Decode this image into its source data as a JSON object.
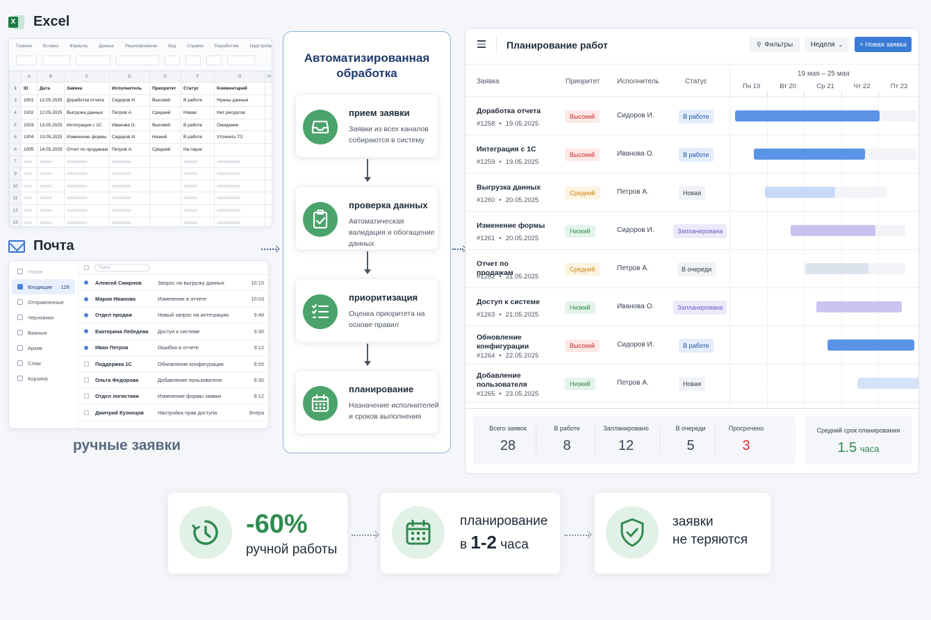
{
  "excel": {
    "title": "Excel",
    "ribbon_tabs": [
      "Главная",
      "Вставка",
      "Формулы",
      "Данные",
      "Рецензирование",
      "Вид",
      "Справка",
      "Разработчик",
      "Надстройки"
    ],
    "columns": [
      "A",
      "B",
      "C",
      "D",
      "E",
      "F",
      "G",
      "H"
    ],
    "headers": [
      "ID",
      "Дата",
      "Заявка",
      "Исполнитель",
      "Приоритет",
      "Статус",
      "Комментарий"
    ],
    "rows": [
      [
        "1001",
        "12.05.2025",
        "Доработка отчета",
        "Сидоров И.",
        "Высокий",
        "В работе",
        "Нужны данные"
      ],
      [
        "1002",
        "12.05.2025",
        "Выгрузка данных",
        "Петров А.",
        "Средний",
        "Новая",
        "Нет ресурсов"
      ],
      [
        "1003",
        "13.05.2025",
        "Интеграция с 1С",
        "Иванова О.",
        "Высокий",
        "В работе",
        "Ожидание"
      ],
      [
        "1004",
        "13.05.2025",
        "Изменение формы",
        "Сидоров И.",
        "Низкий",
        "В работе",
        "Уточнить ТЗ"
      ],
      [
        "1005",
        "14.05.2025",
        "Отчет по продажам",
        "Петров А.",
        "Средний",
        "На паузе",
        ""
      ]
    ],
    "row_numbers": [
      "1",
      "3",
      "4",
      "5",
      "6",
      "8",
      "7",
      "9",
      "10",
      "11",
      "13",
      "13"
    ]
  },
  "mail": {
    "title": "Почта",
    "compose": "Новое",
    "search_placeholder": "Поиск",
    "folders": [
      {
        "label": "Входящие",
        "count": "128",
        "icon": "inbox-icon"
      },
      {
        "label": "Отправленные",
        "count": "",
        "icon": "send-icon"
      },
      {
        "label": "Черновики",
        "count": "",
        "icon": "draft-icon"
      },
      {
        "label": "Важные",
        "count": "",
        "icon": "star-icon"
      },
      {
        "label": "Архив",
        "count": "",
        "icon": "archive-icon"
      },
      {
        "label": "Спам",
        "count": "",
        "icon": "spam-icon"
      },
      {
        "label": "Корзина",
        "count": "",
        "icon": "trash-icon"
      }
    ],
    "messages": [
      {
        "from": "Алексей Смирнов",
        "subject": "Запрос на выгрузку данных",
        "time": "10:15",
        "unread": true
      },
      {
        "from": "Мария Иванова",
        "subject": "Изменение в отчете",
        "time": "10:03",
        "unread": true
      },
      {
        "from": "Отдел продаж",
        "subject": "Новый запрос на интеграцию",
        "time": "9:48",
        "unread": true
      },
      {
        "from": "Екатерина Лебедева",
        "subject": "Доступ к системе",
        "time": "9:30",
        "unread": true
      },
      {
        "from": "Иван Петров",
        "subject": "Ошибка в отчете",
        "time": "9:12",
        "unread": true
      },
      {
        "from": "Поддержка 1С",
        "subject": "Обновление конфигурации",
        "time": "8:55",
        "unread": false
      },
      {
        "from": "Ольга Федорова",
        "subject": "Добавление пользователя",
        "time": "8:30",
        "unread": false
      },
      {
        "from": "Отдел логистики",
        "subject": "Изменение формы заявки",
        "time": "8:12",
        "unread": false
      },
      {
        "from": "Дмитрий Кузнецов",
        "subject": "Настройка прав доступа",
        "time": "Вчера",
        "unread": false
      }
    ]
  },
  "manual_label": "ручные заявки",
  "automation": {
    "title": "Автоматизированная обработка",
    "steps": [
      {
        "title": "прием заявки",
        "desc": "Заявки из всех каналов собираются в систему",
        "icon": "inbox-tray-icon"
      },
      {
        "title": "проверка данных",
        "desc": "Автоматическая валидация и обогащение данных",
        "icon": "clipboard-check-icon"
      },
      {
        "title": "приоритизация",
        "desc": "Оценка приоритета на основе правил",
        "icon": "checklist-icon"
      },
      {
        "title": "планирование",
        "desc": "Назначение исполнителей и сроков выполнения",
        "icon": "calendar-icon"
      }
    ]
  },
  "planning": {
    "title": "Планирование работ",
    "filters_label": "Фильтры",
    "period_label": "Неделя",
    "new_request_label": "+ Новая заявка",
    "columns": {
      "request": "Заявка",
      "priority": "Приоритет",
      "assignee": "Исполнитель",
      "status": "Статус"
    },
    "date_range": "19 мая – 25 мая",
    "days": [
      "Пн 19",
      "Вт 20",
      "Ср 21",
      "Чт 22",
      "Пт 23"
    ],
    "rows": [
      {
        "title": "Доработка отчета",
        "id": "#1258",
        "date": "19.05.2025",
        "priority": "Высокий",
        "pclass": "h",
        "assignee": "Сидоров И.",
        "status": "В работе",
        "sclass": "w",
        "start": 0.1,
        "end": 4.0,
        "track_end": 5.0,
        "color": "#5b93e6"
      },
      {
        "title": "Интеграция с 1С",
        "id": "#1259",
        "date": "19.05.2025",
        "priority": "Высокий",
        "pclass": "h",
        "assignee": "Иванова О.",
        "status": "В работе",
        "sclass": "w",
        "start": 0.6,
        "end": 3.6,
        "track_end": 5.0,
        "color": "#5b93e6"
      },
      {
        "title": "Выгрузка данных",
        "id": "#1260",
        "date": "20.05.2025",
        "priority": "Средний",
        "pclass": "m",
        "assignee": "Петров А.",
        "status": "Новая",
        "sclass": "n",
        "start": 0.9,
        "end": 2.8,
        "track_end": 4.2,
        "color": "#c7d9f6"
      },
      {
        "title": "Изменение формы",
        "id": "#1261",
        "date": "20.05.2025",
        "priority": "Низкий",
        "pclass": "l",
        "assignee": "Сидоров И.",
        "status": "Запланирована",
        "sclass": "p",
        "start": 1.6,
        "end": 3.9,
        "track_end": 4.7,
        "color": "#c9c2f0"
      },
      {
        "title": "Отчет по продажам",
        "id": "#1262",
        "date": "21.05.2025",
        "priority": "Средний",
        "pclass": "m",
        "assignee": "Петров А.",
        "status": "В очереди",
        "sclass": "q",
        "start": 2.0,
        "end": 3.7,
        "track_end": 4.7,
        "color": "#dce3ec"
      },
      {
        "title": "Доступ к системе",
        "id": "#1263",
        "date": "21.05.2025",
        "priority": "Низкий",
        "pclass": "l",
        "assignee": "Иванова О.",
        "status": "Запланирована",
        "sclass": "p",
        "start": 2.3,
        "end": 4.6,
        "track_end": 4.6,
        "color": "#cbc4f1"
      },
      {
        "title": "Обновление конфигурации",
        "id": "#1264",
        "date": "22.05.2025",
        "priority": "Высокий",
        "pclass": "h",
        "assignee": "Сидоров И.",
        "status": "В работе",
        "sclass": "w",
        "start": 2.6,
        "end": 4.95,
        "track_end": 4.95,
        "color": "#5b93e6"
      },
      {
        "title": "Добавление пользователя",
        "id": "#1265",
        "date": "23.05.2025",
        "priority": "Низкий",
        "pclass": "l",
        "assignee": "Петров А.",
        "status": "Новая",
        "sclass": "n",
        "start": 3.4,
        "end": 5.15,
        "track_end": 5.15,
        "color": "#d5e3f8"
      }
    ],
    "stats": [
      {
        "label": "Всего заявок",
        "value": "28"
      },
      {
        "label": "В работе",
        "value": "8"
      },
      {
        "label": "Запланировано",
        "value": "12"
      },
      {
        "label": "В очереди",
        "value": "5"
      },
      {
        "label": "Просрочено",
        "value": "3"
      }
    ],
    "avg_label": "Средний срок планирования",
    "avg_value": "1.5",
    "avg_unit": "часа"
  },
  "benefits": [
    {
      "big": "-60%",
      "text": "ручной работы",
      "icon": "clock-refresh-icon"
    },
    {
      "pre": "планирование",
      "mid": "в ",
      "bold": "1-2",
      "post": " часа",
      "icon": "calendar-icon"
    },
    {
      "line1": "заявки",
      "line2": "не теряются",
      "icon": "shield-check-icon"
    }
  ],
  "colors": {
    "green": "#4aa36a",
    "accent_blue": "#3a7bd5",
    "danger": "#e03131"
  }
}
